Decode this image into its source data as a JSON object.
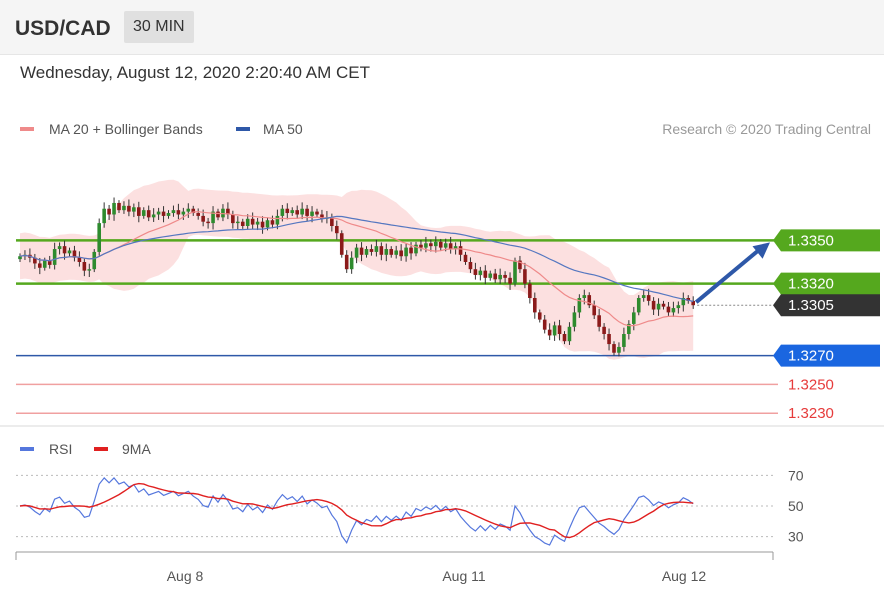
{
  "header": {
    "symbol": "USD/CAD",
    "timeframe": "30 MIN",
    "datetime": "Wednesday, August 12, 2020 2:20:40 AM CET"
  },
  "legend": {
    "ma20": "MA 20 + Bollinger Bands",
    "ma50": "MA 50",
    "rsi": "RSI",
    "rsi_ma": "9MA",
    "credit": "Research © 2020 Trading Central"
  },
  "colors": {
    "green": "#55a81e",
    "blue": "#2e58a8",
    "red": "#e63b3b",
    "dark": "#333333",
    "bollinger": "#fbd5d5",
    "ma20": "#ef8a8a",
    "ma50": "#5577c0",
    "rsi": "#5577dd",
    "rsi_ma": "#e02020"
  },
  "chart_data": [
    {
      "type": "candlestick",
      "title": "USD/CAD",
      "ylim": [
        1.3216,
        1.3392
      ],
      "x_ticks": [
        "Aug 8",
        "Aug 11",
        "Aug 12"
      ],
      "levels": [
        {
          "value": 1.335,
          "label": "1.3350",
          "kind": "resistance"
        },
        {
          "value": 1.332,
          "label": "1.3320",
          "kind": "resistance"
        },
        {
          "value": 1.3305,
          "label": "1.3305",
          "kind": "last"
        },
        {
          "value": 1.327,
          "label": "1.3270",
          "kind": "pivot"
        },
        {
          "value": 1.325,
          "label": "1.3250",
          "kind": "support"
        },
        {
          "value": 1.323,
          "label": "1.3230",
          "kind": "support"
        }
      ],
      "series": [
        {
          "name": "MA 20 + Bollinger Bands"
        },
        {
          "name": "MA 50"
        }
      ],
      "close": [
        1.3339,
        1.334,
        1.3338,
        1.3334,
        1.3331,
        1.3336,
        1.3333,
        1.3344,
        1.3346,
        1.3341,
        1.3343,
        1.3338,
        1.3335,
        1.3329,
        1.333,
        1.3342,
        1.3362,
        1.3372,
        1.3368,
        1.3376,
        1.3371,
        1.3374,
        1.337,
        1.3373,
        1.3367,
        1.3371,
        1.3366,
        1.3368,
        1.337,
        1.3367,
        1.3369,
        1.3371,
        1.3368,
        1.337,
        1.3372,
        1.3369,
        1.3367,
        1.3363,
        1.3362,
        1.337,
        1.3366,
        1.3372,
        1.3368,
        1.3362,
        1.3363,
        1.336,
        1.3365,
        1.3361,
        1.3363,
        1.3359,
        1.3364,
        1.3361,
        1.3367,
        1.3372,
        1.3369,
        1.3371,
        1.3368,
        1.3372,
        1.3367,
        1.337,
        1.3368,
        1.3365,
        1.3366,
        1.336,
        1.3355,
        1.334,
        1.333,
        1.3338,
        1.3345,
        1.334,
        1.3344,
        1.3342,
        1.3346,
        1.334,
        1.3344,
        1.334,
        1.3343,
        1.3339,
        1.3345,
        1.3341,
        1.3347,
        1.3345,
        1.3348,
        1.3346,
        1.3349,
        1.3345,
        1.3348,
        1.3344,
        1.3346,
        1.334,
        1.3335,
        1.333,
        1.3326,
        1.3329,
        1.3324,
        1.3327,
        1.3323,
        1.3326,
        1.3324,
        1.332,
        1.3336,
        1.333,
        1.332,
        1.331,
        1.33,
        1.3295,
        1.3288,
        1.3284,
        1.3291,
        1.3285,
        1.328,
        1.329,
        1.33,
        1.331,
        1.3312,
        1.3305,
        1.3298,
        1.329,
        1.3285,
        1.3278,
        1.3272,
        1.3276,
        1.3285,
        1.3292,
        1.33,
        1.331,
        1.3312,
        1.3308,
        1.3302,
        1.3306,
        1.3304,
        1.33,
        1.3303,
        1.3305,
        1.331,
        1.3308,
        1.3305
      ]
    },
    {
      "type": "line",
      "ylim": [
        20,
        80
      ],
      "y_ticks": [
        30,
        50,
        70
      ],
      "series": [
        {
          "name": "RSI"
        },
        {
          "name": "9MA"
        }
      ]
    }
  ]
}
